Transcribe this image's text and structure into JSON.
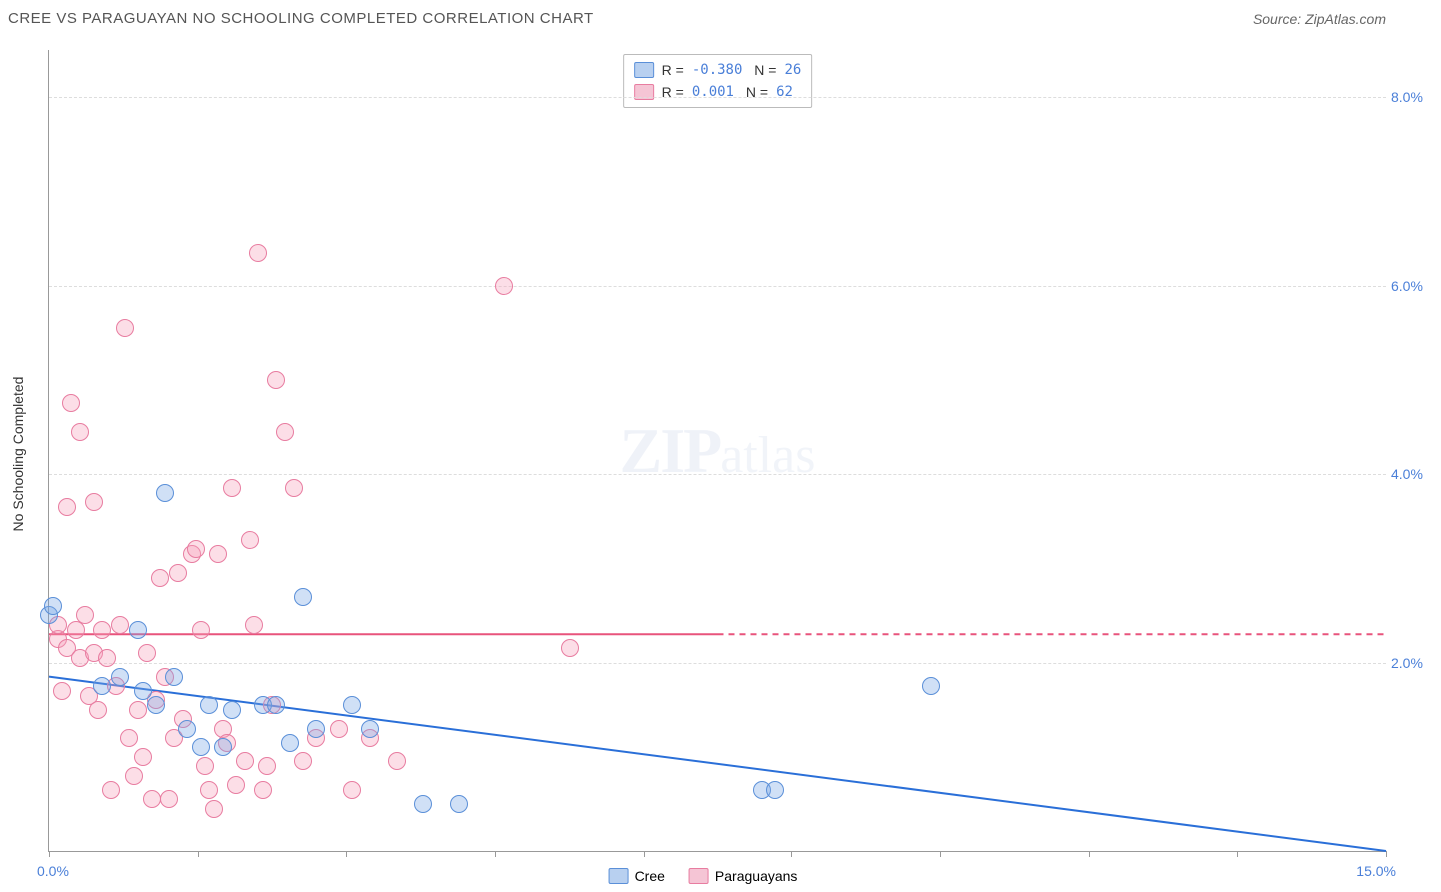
{
  "header": {
    "title": "CREE VS PARAGUAYAN NO SCHOOLING COMPLETED CORRELATION CHART",
    "source": "Source: ZipAtlas.com"
  },
  "watermark": {
    "zip": "ZIP",
    "atlas": "atlas"
  },
  "y_axis": {
    "title": "No Schooling Completed"
  },
  "chart": {
    "type": "scatter",
    "xlim": [
      0,
      15
    ],
    "ylim": [
      0,
      8.5
    ],
    "x_min_label": "0.0%",
    "x_max_label": "15.0%",
    "x_ticks": [
      0,
      1.67,
      3.33,
      5.0,
      6.67,
      8.33,
      10.0,
      11.67,
      13.33,
      15.0
    ],
    "y_gridlines": [
      {
        "value": 2.0,
        "label": "2.0%"
      },
      {
        "value": 4.0,
        "label": "4.0%"
      },
      {
        "value": 6.0,
        "label": "6.0%"
      },
      {
        "value": 8.0,
        "label": "8.0%"
      }
    ],
    "marker_radius": 9,
    "marker_stroke_width": 1.5,
    "background_color": "#ffffff",
    "grid_color": "#dddddd",
    "axis_color": "#999999",
    "label_color": "#4a7fd8",
    "series": {
      "cree": {
        "label": "Cree",
        "fill_color": "rgba(120,165,230,0.35)",
        "stroke_color": "#5a8fd8",
        "swatch_fill": "#b8d0f0",
        "swatch_border": "#5a8fd8",
        "r_value": "-0.380",
        "n_value": "26",
        "trend": {
          "y_at_x0": 1.85,
          "y_at_xmax": 0.0,
          "x_at_y0": 15.0,
          "color": "#2a6fd8",
          "width": 2
        },
        "points": [
          [
            0.0,
            2.5
          ],
          [
            0.05,
            2.6
          ],
          [
            0.6,
            1.75
          ],
          [
            0.8,
            1.85
          ],
          [
            1.0,
            2.35
          ],
          [
            1.05,
            1.7
          ],
          [
            1.2,
            1.55
          ],
          [
            1.3,
            3.8
          ],
          [
            1.4,
            1.85
          ],
          [
            1.55,
            1.3
          ],
          [
            1.7,
            1.1
          ],
          [
            1.8,
            1.55
          ],
          [
            1.95,
            1.1
          ],
          [
            2.05,
            1.5
          ],
          [
            2.4,
            1.55
          ],
          [
            2.55,
            1.55
          ],
          [
            2.7,
            1.15
          ],
          [
            2.85,
            2.7
          ],
          [
            3.0,
            1.3
          ],
          [
            3.4,
            1.55
          ],
          [
            3.6,
            1.3
          ],
          [
            4.2,
            0.5
          ],
          [
            4.6,
            0.5
          ],
          [
            8.0,
            0.65
          ],
          [
            8.15,
            0.65
          ],
          [
            9.9,
            1.75
          ]
        ]
      },
      "paraguayans": {
        "label": "Paraguayans",
        "fill_color": "rgba(245,160,185,0.35)",
        "stroke_color": "#e87ca0",
        "swatch_fill": "#f5c5d5",
        "swatch_border": "#e87ca0",
        "r_value": "0.001",
        "n_value": "62",
        "trend": {
          "y_at_x0": 2.3,
          "y_at_xmax": 2.3,
          "solid_until_x": 7.5,
          "color": "#e8537c",
          "width": 2
        },
        "points": [
          [
            0.1,
            2.25
          ],
          [
            0.1,
            2.4
          ],
          [
            0.15,
            1.7
          ],
          [
            0.2,
            2.15
          ],
          [
            0.2,
            3.65
          ],
          [
            0.25,
            4.75
          ],
          [
            0.3,
            2.35
          ],
          [
            0.35,
            4.45
          ],
          [
            0.35,
            2.05
          ],
          [
            0.4,
            2.5
          ],
          [
            0.45,
            1.65
          ],
          [
            0.5,
            2.1
          ],
          [
            0.5,
            3.7
          ],
          [
            0.55,
            1.5
          ],
          [
            0.6,
            2.35
          ],
          [
            0.65,
            2.05
          ],
          [
            0.7,
            0.65
          ],
          [
            0.75,
            1.75
          ],
          [
            0.8,
            2.4
          ],
          [
            0.85,
            5.55
          ],
          [
            0.9,
            1.2
          ],
          [
            0.95,
            0.8
          ],
          [
            1.0,
            1.5
          ],
          [
            1.05,
            1.0
          ],
          [
            1.1,
            2.1
          ],
          [
            1.15,
            0.55
          ],
          [
            1.2,
            1.6
          ],
          [
            1.25,
            2.9
          ],
          [
            1.3,
            1.85
          ],
          [
            1.35,
            0.55
          ],
          [
            1.4,
            1.2
          ],
          [
            1.45,
            2.95
          ],
          [
            1.5,
            1.4
          ],
          [
            1.6,
            3.15
          ],
          [
            1.65,
            3.2
          ],
          [
            1.7,
            2.35
          ],
          [
            1.75,
            0.9
          ],
          [
            1.8,
            0.65
          ],
          [
            1.85,
            0.45
          ],
          [
            1.9,
            3.15
          ],
          [
            1.95,
            1.3
          ],
          [
            2.0,
            1.15
          ],
          [
            2.05,
            3.85
          ],
          [
            2.1,
            0.7
          ],
          [
            2.2,
            0.95
          ],
          [
            2.25,
            3.3
          ],
          [
            2.3,
            2.4
          ],
          [
            2.35,
            6.35
          ],
          [
            2.4,
            0.65
          ],
          [
            2.45,
            0.9
          ],
          [
            2.5,
            1.55
          ],
          [
            2.55,
            5.0
          ],
          [
            2.65,
            4.45
          ],
          [
            2.75,
            3.85
          ],
          [
            2.85,
            0.95
          ],
          [
            3.0,
            1.2
          ],
          [
            3.25,
            1.3
          ],
          [
            3.4,
            0.65
          ],
          [
            3.6,
            1.2
          ],
          [
            3.9,
            0.95
          ],
          [
            5.1,
            6.0
          ],
          [
            5.85,
            2.15
          ]
        ]
      }
    }
  },
  "legend_bottom": [
    {
      "key": "cree",
      "label": "Cree"
    },
    {
      "key": "paraguayans",
      "label": "Paraguayans"
    }
  ]
}
